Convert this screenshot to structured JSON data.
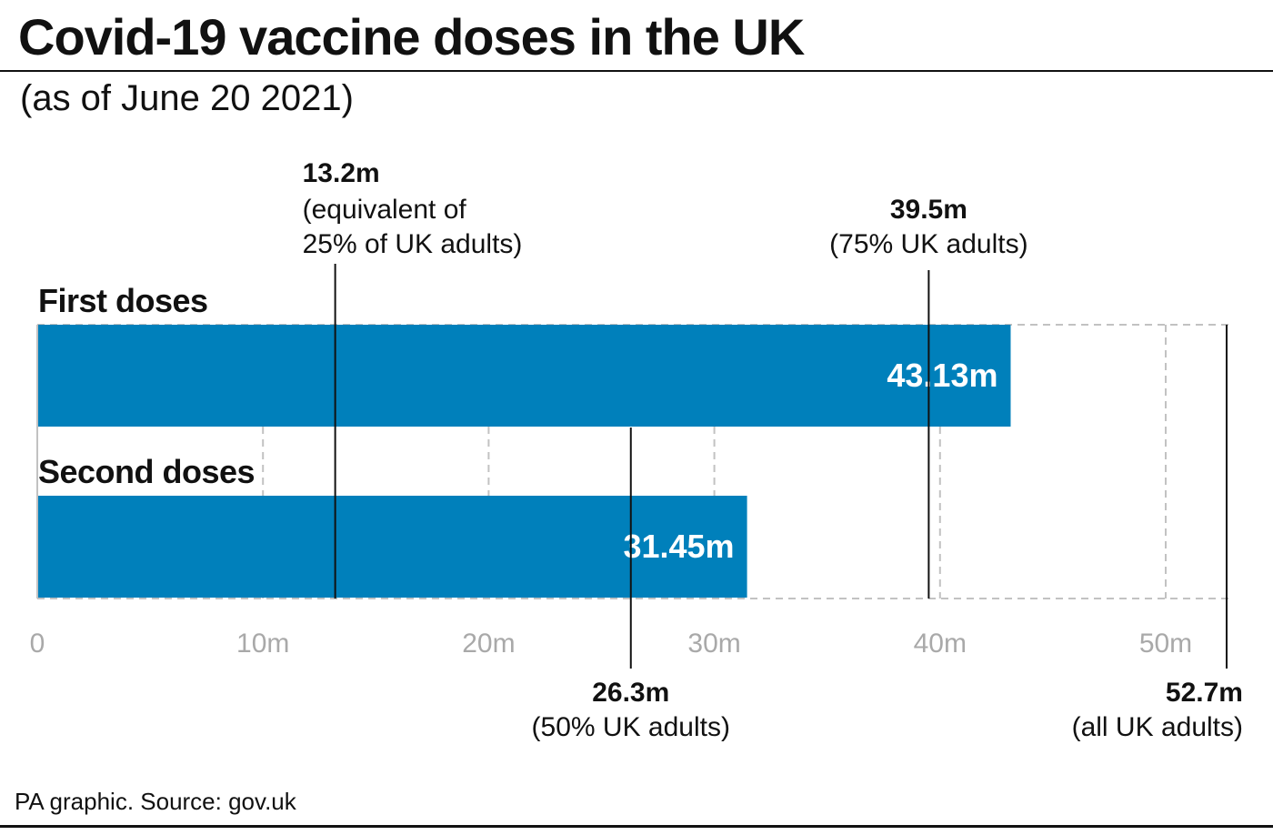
{
  "title": "Covid-19 vaccine doses in the UK",
  "subtitle": "(as of June 20 2021)",
  "source": "PA graphic. Source: gov.uk",
  "colors": {
    "bar": "#0080bb",
    "grid": "#c2c2c2",
    "tick_text": "#a9a9a9",
    "marker": "#111111"
  },
  "chart_data": {
    "type": "bar",
    "orientation": "horizontal",
    "xlim": [
      0,
      52.7
    ],
    "grid": true,
    "ticks": [
      {
        "value": 0,
        "label": "0"
      },
      {
        "value": 10,
        "label": "10m"
      },
      {
        "value": 20,
        "label": "20m"
      },
      {
        "value": 30,
        "label": "30m"
      },
      {
        "value": 40,
        "label": "40m"
      },
      {
        "value": 50,
        "label": "50m"
      }
    ],
    "categories": [
      "First doses",
      "Second doses"
    ],
    "values": [
      43.13,
      31.45
    ],
    "value_labels": [
      "43.13m",
      "31.45m"
    ],
    "reference_lines": [
      {
        "value": 13.2,
        "label": "13.2m",
        "sublabel": [
          "(equivalent of",
          "25% of UK adults)"
        ],
        "position": "top"
      },
      {
        "value": 39.5,
        "label": "39.5m",
        "sublabel": [
          "(75% UK adults)"
        ],
        "position": "top"
      },
      {
        "value": 26.3,
        "label": "26.3m",
        "sublabel": [
          "(50% UK adults)"
        ],
        "position": "bottom"
      },
      {
        "value": 52.7,
        "label": "52.7m",
        "sublabel": [
          "(all UK adults)"
        ],
        "position": "bottom"
      }
    ]
  }
}
